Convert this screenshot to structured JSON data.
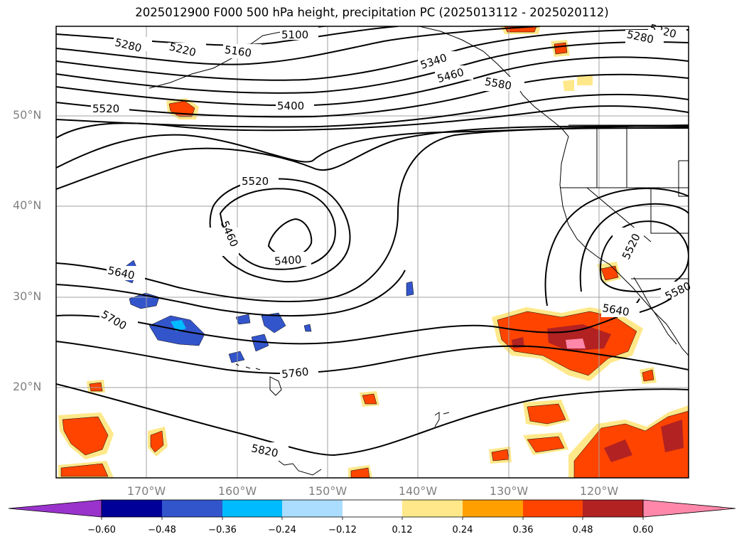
{
  "title": "2025012900 F000 500 hPa height, precipitation PC (2025013112 - 2025020112)",
  "map": {
    "lat_labels": [
      "50°N",
      "40°N",
      "30°N",
      "20°N"
    ],
    "lon_labels": [
      "170°W",
      "160°W",
      "150°W",
      "140°W",
      "130°W",
      "120°W"
    ],
    "contour_labels": [
      "5100",
      "5160",
      "5220",
      "5280",
      "5340",
      "5400",
      "5460",
      "5520",
      "5580",
      "5640",
      "5700",
      "5760",
      "5820"
    ],
    "colors": {
      "land_border": "#000000",
      "grid": "#a0a0a0",
      "contour": "#000000"
    }
  },
  "colorbar": {
    "ticks": [
      "−0.60",
      "−0.48",
      "−0.36",
      "−0.24",
      "−0.12",
      "0.12",
      "0.24",
      "0.36",
      "0.48",
      "0.60"
    ],
    "colors": [
      "#9933cc",
      "#000099",
      "#3355cc",
      "#00bbff",
      "#aaddff",
      "#ffffff",
      "#ffe88a",
      "#ffa000",
      "#ff4400",
      "#b22222",
      "#ff88aa"
    ],
    "extend": "both"
  }
}
